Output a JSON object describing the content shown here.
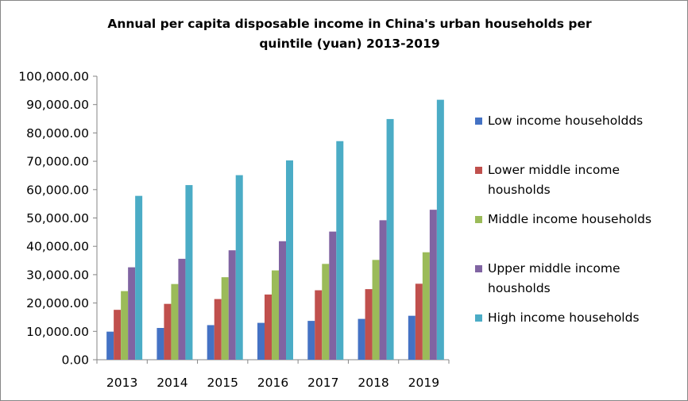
{
  "chart_data": {
    "type": "bar",
    "title": "Annual per capita disposable income in China's urban households per\nquintile (yuan) 2013-2019",
    "categories": [
      "2013",
      "2014",
      "2015",
      "2016",
      "2017",
      "2018",
      "2019"
    ],
    "series": [
      {
        "name": "Low income householdds",
        "color": "#4472C4",
        "values": [
          9900,
          11200,
          12200,
          13000,
          13700,
          14400,
          15500
        ]
      },
      {
        "name": "Lower middle income housholds",
        "color": "#C0504D",
        "values": [
          17600,
          19700,
          21400,
          23000,
          24500,
          24900,
          26800
        ]
      },
      {
        "name": "Middle income households",
        "color": "#9BBB59",
        "values": [
          24200,
          26700,
          29100,
          31500,
          33800,
          35200,
          37900
        ]
      },
      {
        "name": "Upper middle income housholds",
        "color": "#8064A2",
        "values": [
          32600,
          35600,
          38600,
          41800,
          45200,
          49200,
          52900
        ]
      },
      {
        "name": "High income households",
        "color": "#4BACC6",
        "values": [
          57800,
          61600,
          65100,
          70300,
          77100,
          84900,
          91700
        ]
      }
    ],
    "y_ticks": [
      "0.00",
      "10,000.00",
      "20,000.00",
      "30,000.00",
      "40,000.00",
      "50,000.00",
      "60,000.00",
      "70,000.00",
      "80,000.00",
      "90,000.00",
      "100,000.00"
    ],
    "ylim": [
      0,
      100000
    ],
    "grid": false,
    "legend_position": "right"
  }
}
